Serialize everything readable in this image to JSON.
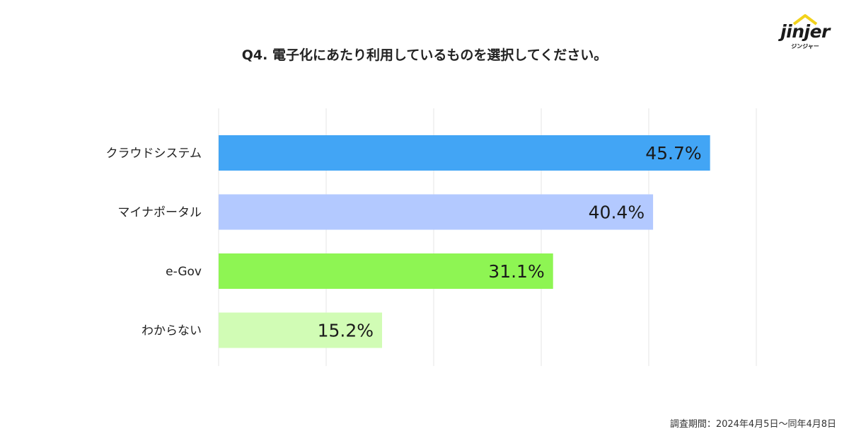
{
  "title": "Q4. 電子化にあたり利用しているものを選択してください。",
  "logo": {
    "word": "jinjer",
    "sub": "ジンジャー",
    "roof_color": "#f2d21b"
  },
  "footer": "調査期間：2024年4月5日〜同年4月8日",
  "chart_data": {
    "type": "bar",
    "orientation": "horizontal",
    "categories": [
      "クラウドシステム",
      "マイナポータル",
      "e-Gov",
      "わからない"
    ],
    "values": [
      45.7,
      40.4,
      31.1,
      15.2
    ],
    "data_labels": [
      "45.7%",
      "40.4%",
      "31.1%",
      "15.2%"
    ],
    "colors": [
      "#42a5f5",
      "#b3c9ff",
      "#8ef553",
      "#d1fcb5"
    ],
    "xlim": [
      0,
      50
    ],
    "grid": true,
    "grid_step": 10,
    "title": "Q4. 電子化にあたり利用しているものを選択してください。",
    "xlabel": "",
    "ylabel": ""
  }
}
